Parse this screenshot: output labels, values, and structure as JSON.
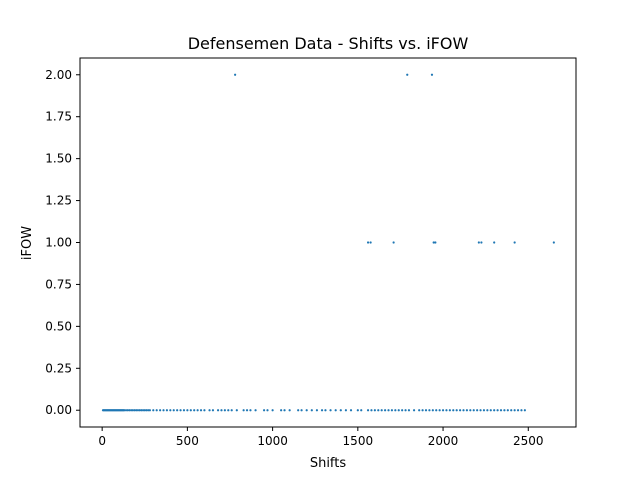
{
  "chart_data": {
    "type": "scatter",
    "title": "Defensemen Data - Shifts vs. iFOW",
    "xlabel": "Shifts",
    "ylabel": "iFOW",
    "xlim": [
      -130,
      2780
    ],
    "ylim": [
      -0.1,
      2.1
    ],
    "xticks": [
      0,
      500,
      1000,
      1500,
      2000,
      2500
    ],
    "yticks": [
      "0.00",
      "0.25",
      "0.50",
      "0.75",
      "1.00",
      "1.25",
      "1.50",
      "1.75",
      "2.00"
    ],
    "grid": false,
    "marker_color": "#1f77b4",
    "series": [
      {
        "x": [
          5,
          10,
          15,
          20,
          25,
          30,
          35,
          40,
          45,
          50,
          55,
          60,
          65,
          70,
          75,
          80,
          85,
          90,
          95,
          100,
          105,
          110,
          115,
          120,
          125,
          130,
          140,
          150,
          160,
          170,
          180,
          190,
          200,
          210,
          220,
          230,
          240,
          250,
          260,
          270,
          280,
          300,
          320,
          340,
          360,
          380,
          400,
          420,
          440,
          460,
          480,
          500,
          520,
          540,
          560,
          580,
          600,
          630,
          650,
          680,
          700,
          720,
          740,
          760,
          790,
          830,
          850,
          870,
          900,
          950,
          970,
          1000,
          1050,
          1070,
          1100,
          1150,
          1170,
          1200,
          1230,
          1260,
          1290,
          1310,
          1340,
          1370,
          1400,
          1430,
          1460,
          1500,
          1520,
          1560,
          1580,
          1600,
          1620,
          1640,
          1660,
          1680,
          1700,
          1720,
          1740,
          1760,
          1780,
          1800,
          1830,
          1860,
          1880,
          1900,
          1920,
          1940,
          1960,
          1980,
          2000,
          2020,
          2040,
          2060,
          2080,
          2100,
          2120,
          2140,
          2160,
          2180,
          2200,
          2220,
          2240,
          2260,
          2280,
          2300,
          2320,
          2340,
          2360,
          2380,
          2400,
          2420,
          2440,
          2460,
          2480,
          780,
          1790,
          1935,
          1560,
          1575,
          1710,
          1945,
          1955,
          2210,
          2225,
          2300,
          2420,
          2650
        ],
        "y": [
          0,
          0,
          0,
          0,
          0,
          0,
          0,
          0,
          0,
          0,
          0,
          0,
          0,
          0,
          0,
          0,
          0,
          0,
          0,
          0,
          0,
          0,
          0,
          0,
          0,
          0,
          0,
          0,
          0,
          0,
          0,
          0,
          0,
          0,
          0,
          0,
          0,
          0,
          0,
          0,
          0,
          0,
          0,
          0,
          0,
          0,
          0,
          0,
          0,
          0,
          0,
          0,
          0,
          0,
          0,
          0,
          0,
          0,
          0,
          0,
          0,
          0,
          0,
          0,
          0,
          0,
          0,
          0,
          0,
          0,
          0,
          0,
          0,
          0,
          0,
          0,
          0,
          0,
          0,
          0,
          0,
          0,
          0,
          0,
          0,
          0,
          0,
          0,
          0,
          0,
          0,
          0,
          0,
          0,
          0,
          0,
          0,
          0,
          0,
          0,
          0,
          0,
          0,
          0,
          0,
          0,
          0,
          0,
          0,
          0,
          0,
          0,
          0,
          0,
          0,
          0,
          0,
          0,
          0,
          0,
          0,
          0,
          0,
          0,
          0,
          0,
          0,
          0,
          0,
          0,
          0,
          0,
          0,
          0,
          0,
          2,
          2,
          2,
          1,
          1,
          1,
          1,
          1,
          1,
          1,
          1,
          1,
          1
        ]
      }
    ]
  }
}
